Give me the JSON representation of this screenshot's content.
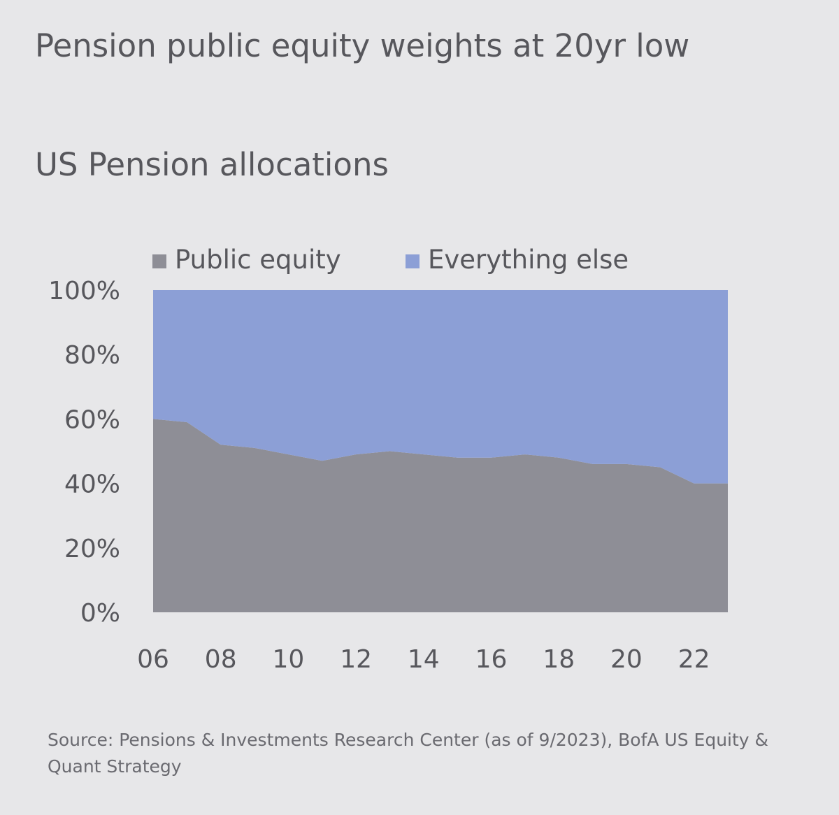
{
  "title": "Pension public equity weights at 20yr low",
  "subtitle": "US Pension allocations",
  "source": "Source: Pensions & Investments Research Center (as of 9/2023), BofA US Equity & Quant Strategy",
  "colors": {
    "public_equity": "#8e8e96",
    "everything_else": "#8c9fd6",
    "text": "#57575c"
  },
  "chart_data": {
    "type": "area",
    "stacked": true,
    "percent_stacked": true,
    "x": [
      2006,
      2007,
      2008,
      2009,
      2010,
      2011,
      2012,
      2013,
      2014,
      2015,
      2016,
      2017,
      2018,
      2019,
      2020,
      2021,
      2022,
      2023
    ],
    "x_ticks": [
      "06",
      "08",
      "10",
      "12",
      "14",
      "16",
      "18",
      "20",
      "22"
    ],
    "series": [
      {
        "name": "Public equity",
        "values": [
          60,
          59,
          52,
          51,
          49,
          47,
          49,
          50,
          49,
          48,
          48,
          49,
          48,
          46,
          46,
          45,
          40,
          40
        ]
      },
      {
        "name": "Everything else",
        "values": [
          40,
          41,
          48,
          49,
          51,
          53,
          51,
          50,
          51,
          52,
          52,
          51,
          52,
          54,
          54,
          55,
          60,
          60
        ]
      }
    ],
    "y_ticks": [
      "0%",
      "20%",
      "40%",
      "60%",
      "80%",
      "100%"
    ],
    "ylim": [
      0,
      100
    ],
    "xlim": [
      2006,
      2023
    ],
    "legend": {
      "position": "top",
      "entries": [
        "Public equity",
        "Everything else"
      ]
    },
    "grid": false
  }
}
